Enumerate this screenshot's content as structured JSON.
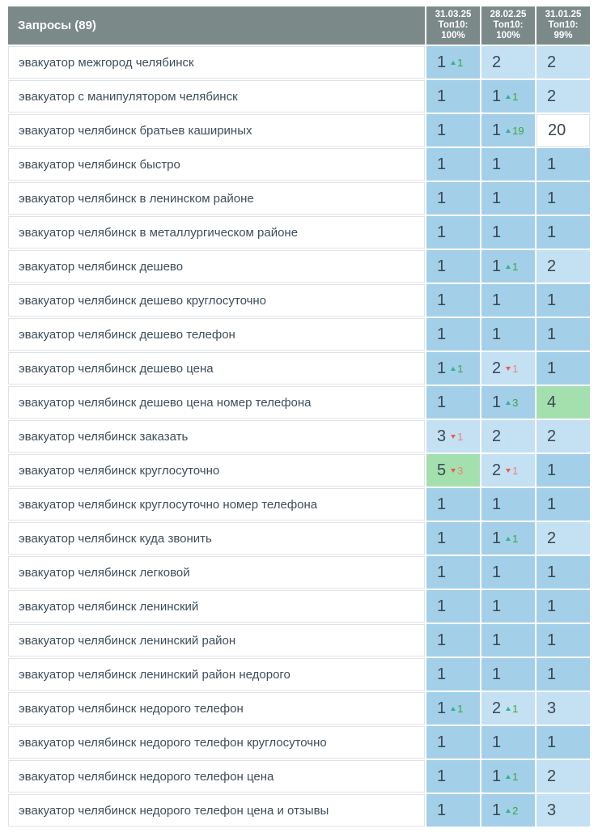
{
  "title": "Запросы (89)",
  "columns": [
    {
      "id": "col-31-03-25",
      "lines": [
        "31.03.25",
        "Топ10:",
        "100%"
      ]
    },
    {
      "id": "col-28-02-25",
      "lines": [
        "28.02.25",
        "Топ10:",
        "100%"
      ]
    },
    {
      "id": "col-31-01-25",
      "lines": [
        "31.01.25",
        "Топ10: 99%"
      ]
    }
  ],
  "colors": {
    "header_bg": "#7b8989",
    "position1_bg": "#a3cfe9",
    "position2_3_bg": "#c4e0f3",
    "position4_5_bg": "#a3e0ae",
    "position_out_bg": "#ffffff",
    "delta_up_arrow": "#2cb392",
    "delta_up_text": "#3fa536",
    "delta_down_arrow": "#f0594a",
    "delta_down_text": "#ef8379",
    "query_text": "#3f4e5d",
    "value_text": "#3a4852"
  },
  "rows": [
    {
      "query": "эвакуатор межгород челябинск",
      "cells": [
        {
          "value": "1",
          "delta": "1",
          "dir": "up",
          "bg": "blue1"
        },
        {
          "value": "2",
          "bg": "blue2"
        },
        {
          "value": "2",
          "bg": "blue2"
        }
      ]
    },
    {
      "query": "эвакуатор с манипулятором челябинск",
      "cells": [
        {
          "value": "1",
          "bg": "blue1"
        },
        {
          "value": "1",
          "delta": "1",
          "dir": "up",
          "bg": "blue1"
        },
        {
          "value": "2",
          "bg": "blue2"
        }
      ]
    },
    {
      "query": "эвакуатор челябинск братьев кашириных",
      "cells": [
        {
          "value": "1",
          "bg": "blue1"
        },
        {
          "value": "1",
          "delta": "19",
          "dir": "up",
          "bg": "blue1"
        },
        {
          "value": "20",
          "bg": "white"
        }
      ]
    },
    {
      "query": "эвакуатор челябинск быстро",
      "cells": [
        {
          "value": "1",
          "bg": "blue1"
        },
        {
          "value": "1",
          "bg": "blue1"
        },
        {
          "value": "1",
          "bg": "blue1"
        }
      ]
    },
    {
      "query": "эвакуатор челябинск в ленинском районе",
      "cells": [
        {
          "value": "1",
          "bg": "blue1"
        },
        {
          "value": "1",
          "bg": "blue1"
        },
        {
          "value": "1",
          "bg": "blue1"
        }
      ]
    },
    {
      "query": "эвакуатор челябинск в металлургическом районе",
      "cells": [
        {
          "value": "1",
          "bg": "blue1"
        },
        {
          "value": "1",
          "bg": "blue1"
        },
        {
          "value": "1",
          "bg": "blue1"
        }
      ]
    },
    {
      "query": "эвакуатор челябинск дешево",
      "cells": [
        {
          "value": "1",
          "bg": "blue1"
        },
        {
          "value": "1",
          "delta": "1",
          "dir": "up",
          "bg": "blue1"
        },
        {
          "value": "2",
          "bg": "blue2"
        }
      ]
    },
    {
      "query": "эвакуатор челябинск дешево круглосуточно",
      "cells": [
        {
          "value": "1",
          "bg": "blue1"
        },
        {
          "value": "1",
          "bg": "blue1"
        },
        {
          "value": "1",
          "bg": "blue1"
        }
      ]
    },
    {
      "query": "эвакуатор челябинск дешево телефон",
      "cells": [
        {
          "value": "1",
          "bg": "blue1"
        },
        {
          "value": "1",
          "bg": "blue1"
        },
        {
          "value": "1",
          "bg": "blue1"
        }
      ]
    },
    {
      "query": "эвакуатор челябинск дешево цена",
      "cells": [
        {
          "value": "1",
          "delta": "1",
          "dir": "up",
          "bg": "blue1"
        },
        {
          "value": "2",
          "delta": "1",
          "dir": "down",
          "bg": "blue2"
        },
        {
          "value": "1",
          "bg": "blue1"
        }
      ]
    },
    {
      "query": "эвакуатор челябинск дешево цена номер телефона",
      "cells": [
        {
          "value": "1",
          "bg": "blue1"
        },
        {
          "value": "1",
          "delta": "3",
          "dir": "up",
          "bg": "blue1"
        },
        {
          "value": "4",
          "bg": "green"
        }
      ]
    },
    {
      "query": "эвакуатор челябинск заказать",
      "cells": [
        {
          "value": "3",
          "delta": "1",
          "dir": "down",
          "bg": "blue2"
        },
        {
          "value": "2",
          "bg": "blue2"
        },
        {
          "value": "2",
          "bg": "blue2"
        }
      ]
    },
    {
      "query": "эвакуатор челябинск круглосуточно",
      "cells": [
        {
          "value": "5",
          "delta": "3",
          "dir": "down",
          "bg": "green"
        },
        {
          "value": "2",
          "delta": "1",
          "dir": "down",
          "bg": "blue2"
        },
        {
          "value": "1",
          "bg": "blue1"
        }
      ]
    },
    {
      "query": "эвакуатор челябинск круглосуточно номер телефона",
      "cells": [
        {
          "value": "1",
          "bg": "blue1"
        },
        {
          "value": "1",
          "bg": "blue1"
        },
        {
          "value": "1",
          "bg": "blue1"
        }
      ]
    },
    {
      "query": "эвакуатор челябинск куда звонить",
      "cells": [
        {
          "value": "1",
          "bg": "blue1"
        },
        {
          "value": "1",
          "delta": "1",
          "dir": "up",
          "bg": "blue1"
        },
        {
          "value": "2",
          "bg": "blue2"
        }
      ]
    },
    {
      "query": "эвакуатор челябинск легковой",
      "cells": [
        {
          "value": "1",
          "bg": "blue1"
        },
        {
          "value": "1",
          "bg": "blue1"
        },
        {
          "value": "1",
          "bg": "blue1"
        }
      ]
    },
    {
      "query": "эвакуатор челябинск ленинский",
      "cells": [
        {
          "value": "1",
          "bg": "blue1"
        },
        {
          "value": "1",
          "bg": "blue1"
        },
        {
          "value": "1",
          "bg": "blue1"
        }
      ]
    },
    {
      "query": "эвакуатор челябинск ленинский район",
      "cells": [
        {
          "value": "1",
          "bg": "blue1"
        },
        {
          "value": "1",
          "bg": "blue1"
        },
        {
          "value": "1",
          "bg": "blue1"
        }
      ]
    },
    {
      "query": "эвакуатор челябинск ленинский район недорого",
      "cells": [
        {
          "value": "1",
          "bg": "blue1"
        },
        {
          "value": "1",
          "bg": "blue1"
        },
        {
          "value": "1",
          "bg": "blue1"
        }
      ]
    },
    {
      "query": "эвакуатор челябинск недорого телефон",
      "cells": [
        {
          "value": "1",
          "delta": "1",
          "dir": "up",
          "bg": "blue1"
        },
        {
          "value": "2",
          "delta": "1",
          "dir": "up",
          "bg": "blue2"
        },
        {
          "value": "3",
          "bg": "blue2"
        }
      ]
    },
    {
      "query": "эвакуатор челябинск недорого телефон круглосуточно",
      "cells": [
        {
          "value": "1",
          "bg": "blue1"
        },
        {
          "value": "1",
          "bg": "blue1"
        },
        {
          "value": "1",
          "bg": "blue1"
        }
      ]
    },
    {
      "query": "эвакуатор челябинск недорого телефон цена",
      "cells": [
        {
          "value": "1",
          "bg": "blue1"
        },
        {
          "value": "1",
          "delta": "1",
          "dir": "up",
          "bg": "blue1"
        },
        {
          "value": "2",
          "bg": "blue2"
        }
      ]
    },
    {
      "query": "эвакуатор челябинск недорого телефон цена и отзывы",
      "cells": [
        {
          "value": "1",
          "bg": "blue1"
        },
        {
          "value": "1",
          "delta": "2",
          "dir": "up",
          "bg": "blue1"
        },
        {
          "value": "3",
          "bg": "blue2"
        }
      ]
    }
  ]
}
